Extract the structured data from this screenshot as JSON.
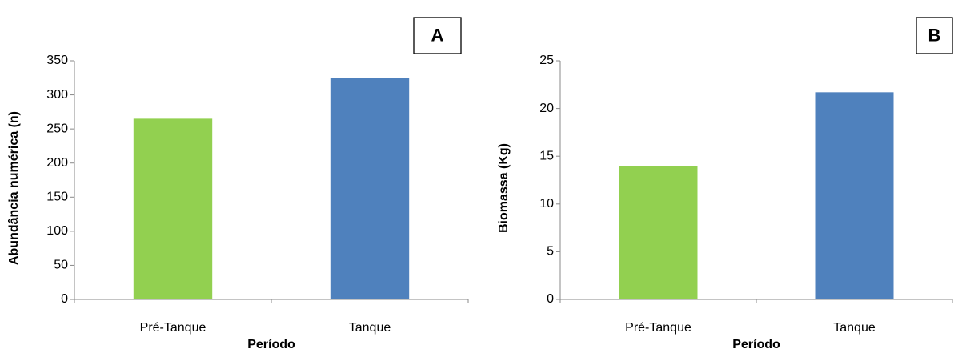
{
  "chart_data": [
    {
      "type": "bar",
      "panel_label": "A",
      "x_label": "Período",
      "y_label": "Abundância  numérica  (n)",
      "categories": [
        "Pré-Tanque",
        "Tanque"
      ],
      "values": [
        265,
        325
      ],
      "colors": [
        "#92d050",
        "#4f81bd"
      ],
      "ylim": [
        0,
        350
      ],
      "yticks": [
        0,
        50,
        100,
        150,
        200,
        250,
        300,
        350
      ]
    },
    {
      "type": "bar",
      "panel_label": "B",
      "x_label": "Período",
      "y_label": "Biomassa  (Kg)",
      "categories": [
        "Pré-Tanque",
        "Tanque"
      ],
      "values": [
        14,
        21.7
      ],
      "colors": [
        "#92d050",
        "#4f81bd"
      ],
      "ylim": [
        0,
        25
      ],
      "yticks": [
        0,
        5,
        10,
        15,
        20,
        25
      ]
    }
  ]
}
